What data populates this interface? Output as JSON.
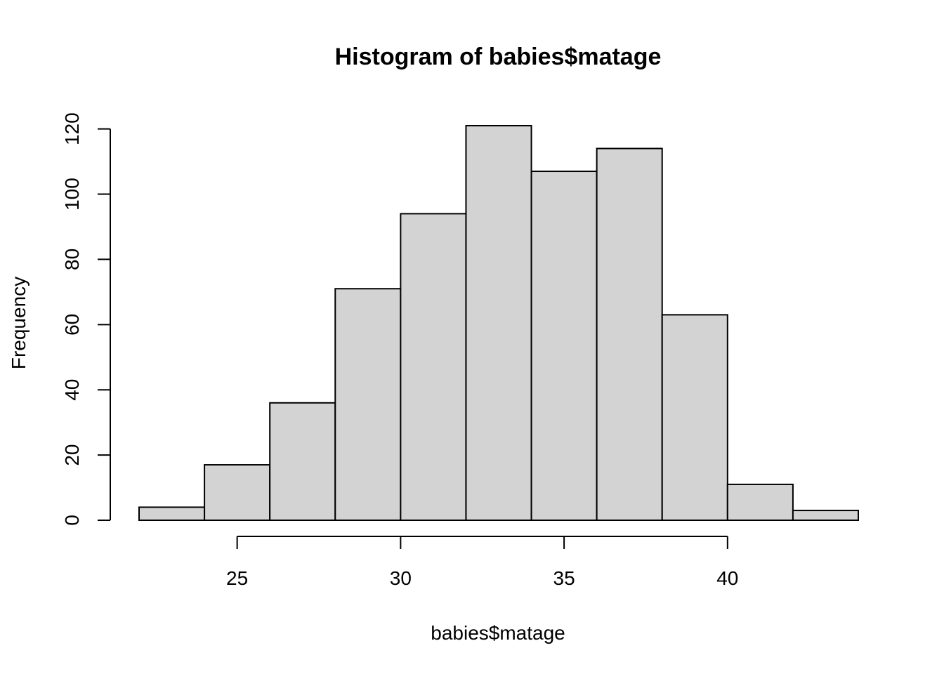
{
  "chart_data": {
    "type": "bar",
    "subtype": "histogram",
    "title": "Histogram of babies$matage",
    "xlabel": "babies$matage",
    "ylabel": "Frequency",
    "bins": [
      {
        "start": 22,
        "end": 24,
        "count": 4
      },
      {
        "start": 24,
        "end": 26,
        "count": 17
      },
      {
        "start": 26,
        "end": 28,
        "count": 36
      },
      {
        "start": 28,
        "end": 30,
        "count": 71
      },
      {
        "start": 30,
        "end": 32,
        "count": 94
      },
      {
        "start": 32,
        "end": 34,
        "count": 121
      },
      {
        "start": 34,
        "end": 36,
        "count": 107
      },
      {
        "start": 36,
        "end": 38,
        "count": 114
      },
      {
        "start": 38,
        "end": 40,
        "count": 63
      },
      {
        "start": 40,
        "end": 42,
        "count": 11
      },
      {
        "start": 42,
        "end": 44,
        "count": 3
      }
    ],
    "xlim": [
      22,
      44
    ],
    "ylim": [
      0,
      121
    ],
    "x_ticks": [
      25,
      30,
      35,
      40
    ],
    "y_ticks": [
      0,
      20,
      40,
      60,
      80,
      100,
      120
    ],
    "bar_color": "#d3d3d3",
    "border_color": "#000000",
    "grid": false,
    "legend": "none"
  }
}
